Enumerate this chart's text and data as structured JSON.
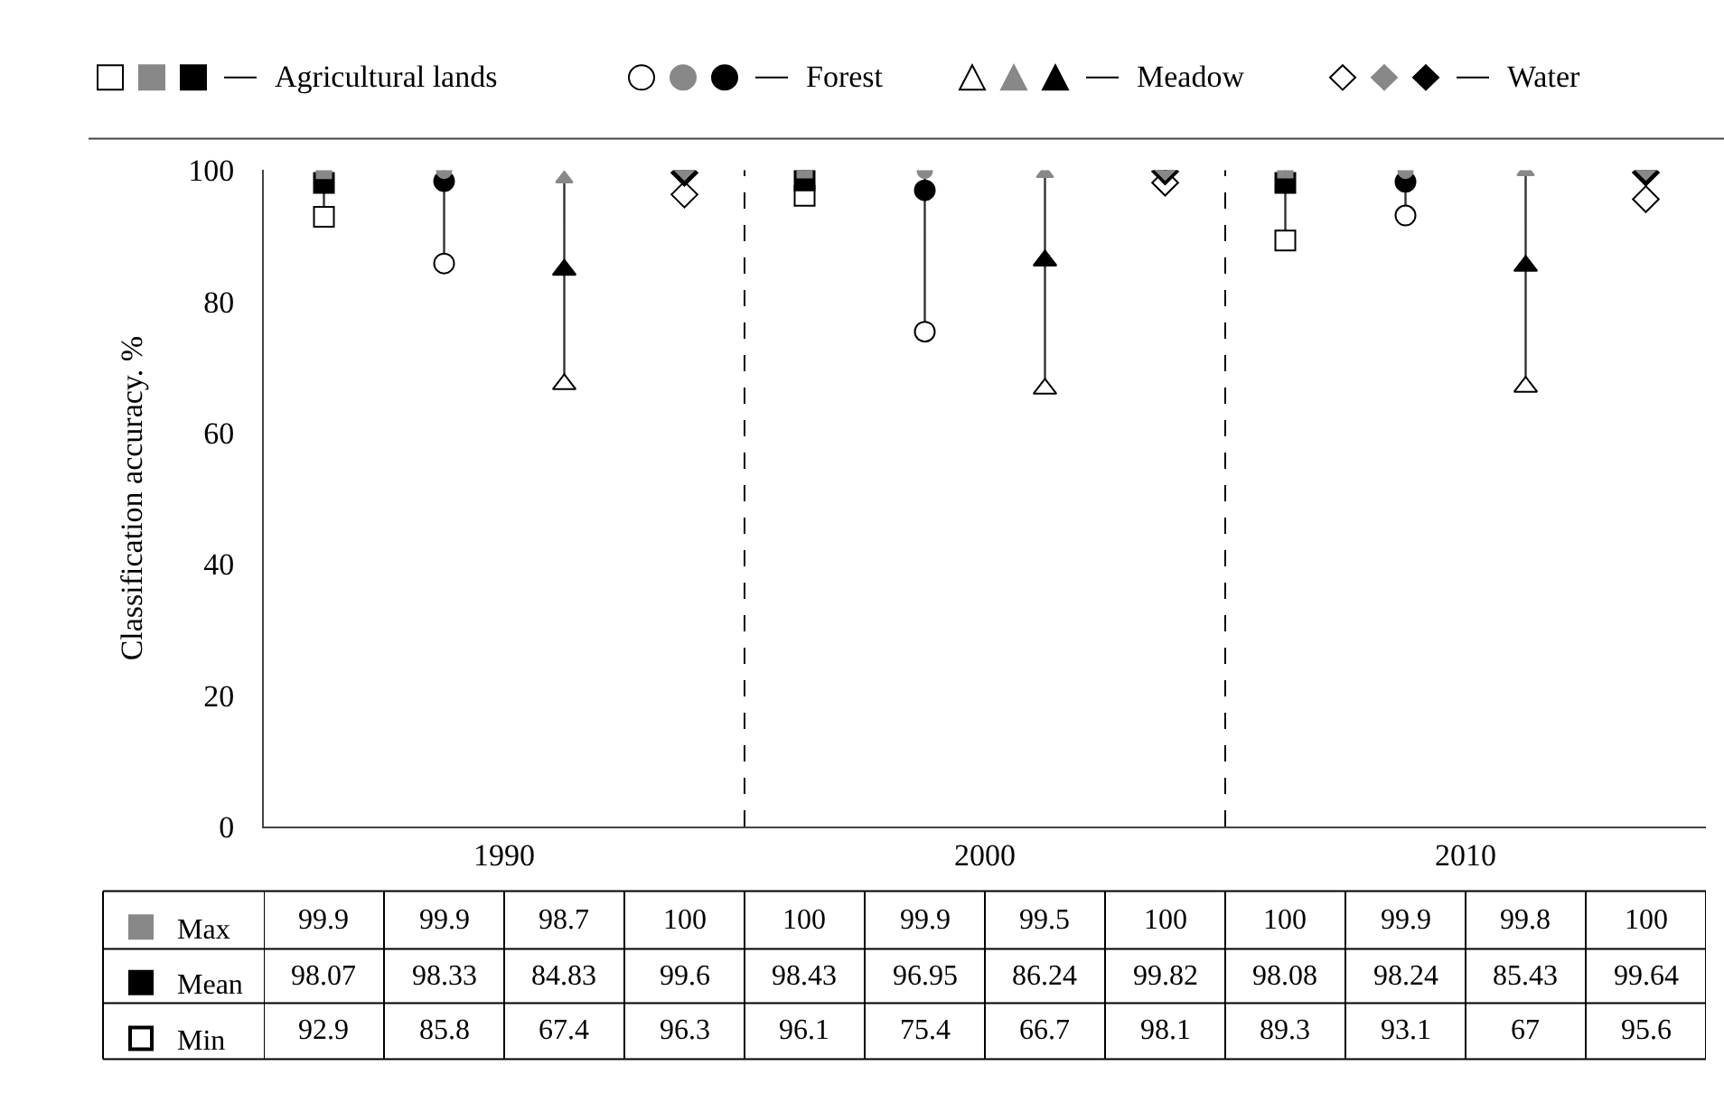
{
  "chart_data": {
    "type": "scatter",
    "ylabel": "Classification accuracy. %",
    "categories": [
      null,
      null,
      null,
      null,
      null,
      null,
      null,
      null,
      null,
      null,
      null,
      null
    ],
    "ylim": [
      0,
      100
    ],
    "yticks": [
      0,
      20,
      40,
      60,
      80,
      100
    ],
    "grid": false,
    "legend": "bottom left",
    "data_labels": true,
    "annotations": [
      "Agricultural lands",
      "Forest",
      "Meadow",
      "Water",
      "1990",
      "2000",
      "2010"
    ],
    "series": [
      {
        "name": "Max",
        "color": "#888888",
        "values": [
          99.9,
          99.9,
          98.7,
          100,
          100,
          99.9,
          99.5,
          100,
          100,
          99.9,
          99.8,
          100
        ]
      },
      {
        "name": "Mean",
        "color": "#000000",
        "values": [
          98.07,
          98.33,
          84.83,
          99.6,
          98.43,
          96.95,
          86.24,
          99.82,
          98.08,
          98.24,
          85.43,
          99.64
        ]
      },
      {
        "name": "Min",
        "color": "#ffffff",
        "values": [
          92.9,
          85.8,
          67.4,
          96.3,
          96.1,
          75.4,
          66.7,
          98.1,
          89.3,
          93.1,
          67,
          95.6
        ]
      }
    ]
  }
}
